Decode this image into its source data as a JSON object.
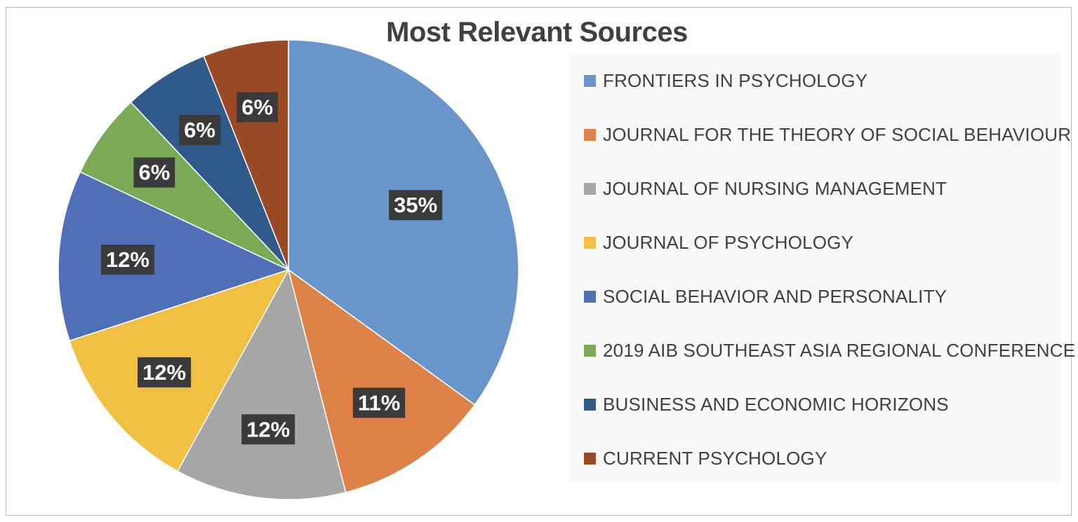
{
  "chart_data": {
    "type": "pie",
    "title": "Most Relevant Sources",
    "legend_position": "right",
    "slices": [
      {
        "label": "FRONTIERS IN PSYCHOLOGY",
        "value": 35,
        "display": "35%",
        "color": "#6896cb"
      },
      {
        "label": "JOURNAL FOR THE THEORY OF SOCIAL BEHAVIOUR",
        "value": 11,
        "display": "11%",
        "color": "#df8247"
      },
      {
        "label": "JOURNAL OF NURSING MANAGEMENT",
        "value": 12,
        "display": "12%",
        "color": "#a6a6a6"
      },
      {
        "label": "JOURNAL OF PSYCHOLOGY",
        "value": 12,
        "display": "12%",
        "color": "#f1bf41"
      },
      {
        "label": "SOCIAL BEHAVIOR AND PERSONALITY",
        "value": 12,
        "display": "12%",
        "color": "#4f6fb6"
      },
      {
        "label": "2019 AIB SOUTHEAST ASIA REGIONAL CONFERENCE",
        "value": 6,
        "display": "6%",
        "color": "#7aaa56"
      },
      {
        "label": "BUSINESS AND ECONOMIC HORIZONS",
        "value": 6,
        "display": "6%",
        "color": "#2f5a8a"
      },
      {
        "label": "CURRENT PSYCHOLOGY",
        "value": 6,
        "display": "6%",
        "color": "#9a4a25"
      }
    ]
  }
}
